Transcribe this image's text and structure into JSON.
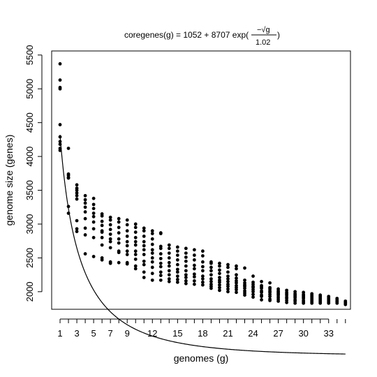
{
  "chart_data": {
    "type": "scatter",
    "title_parts": {
      "lhs": "coregenes(g) = 1052 + 8707 exp(",
      "numerator": "−√g",
      "denominator": "1.02",
      "close": ")"
    },
    "xlabel": "genomes (g)",
    "ylabel": "genome size (genes)",
    "xlim": [
      0.0,
      35.6
    ],
    "ylim": [
      1740,
      5560
    ],
    "x_ticks": [
      1,
      3,
      5,
      7,
      9,
      12,
      15,
      18,
      21,
      24,
      27,
      30,
      33
    ],
    "y_ticks": [
      2000,
      2500,
      3000,
      3500,
      4000,
      4500,
      5000,
      5500
    ],
    "fit": {
      "a": 1052,
      "b": 8707,
      "c": 1.02
    },
    "points_by_genomes": {
      "1": [
        5370,
        5130,
        5020,
        5000,
        4470,
        4290,
        4220,
        4180,
        4120,
        4090
      ],
      "2": [
        4120,
        3740,
        3720,
        3690,
        3680,
        3260,
        3160
      ],
      "3": [
        3580,
        3530,
        3500,
        3460,
        3420,
        3370,
        3050,
        2930,
        2890
      ],
      "4": [
        3420,
        3360,
        3310,
        3250,
        3180,
        3080,
        2940,
        2840,
        2560
      ],
      "5": [
        3380,
        3290,
        3230,
        3160,
        3110,
        3030,
        2930,
        2800,
        2520
      ],
      "6": [
        3150,
        3120,
        3040,
        2980,
        2900,
        2880,
        2800,
        2690,
        2500,
        2470
      ],
      "7": [
        3100,
        3060,
        2990,
        2920,
        2850,
        2780,
        2740,
        2650,
        2440,
        2420
      ],
      "8": [
        3080,
        3030,
        2950,
        2870,
        2780,
        2720,
        2600,
        2580,
        2430
      ],
      "9": [
        3060,
        2990,
        2900,
        2820,
        2740,
        2680,
        2600,
        2550,
        2430,
        2410
      ],
      "10": [
        3000,
        2950,
        2880,
        2800,
        2740,
        2690,
        2600,
        2550,
        2480,
        2380,
        2340
      ],
      "11": [
        2940,
        2900,
        2820,
        2740,
        2680,
        2620,
        2550,
        2450,
        2400,
        2290,
        2210
      ],
      "12": [
        2900,
        2860,
        2780,
        2700,
        2620,
        2570,
        2500,
        2440,
        2360,
        2270,
        2170
      ],
      "13": [
        2870,
        2860,
        2670,
        2640,
        2560,
        2490,
        2420,
        2370,
        2290,
        2240,
        2170
      ],
      "14": [
        2690,
        2640,
        2570,
        2500,
        2430,
        2380,
        2310,
        2250,
        2190,
        2150
      ],
      "15": [
        2660,
        2600,
        2540,
        2470,
        2400,
        2330,
        2290,
        2230,
        2180,
        2140
      ],
      "16": [
        2640,
        2570,
        2510,
        2450,
        2380,
        2310,
        2250,
        2210,
        2160,
        2120
      ],
      "17": [
        2620,
        2540,
        2470,
        2390,
        2340,
        2260,
        2220,
        2160,
        2110
      ],
      "18": [
        2600,
        2530,
        2440,
        2370,
        2310,
        2230,
        2190,
        2140,
        2100
      ],
      "19": [
        2440,
        2420,
        2360,
        2310,
        2250,
        2190,
        2150,
        2110,
        2080,
        2050
      ],
      "20": [
        2420,
        2380,
        2320,
        2270,
        2210,
        2170,
        2140,
        2100,
        2060,
        2020
      ],
      "21": [
        2400,
        2360,
        2290,
        2230,
        2190,
        2150,
        2110,
        2080,
        2040,
        2000
      ],
      "22": [
        2380,
        2340,
        2250,
        2200,
        2160,
        2130,
        2090,
        2060,
        2030,
        1990
      ],
      "23": [
        2350,
        2170,
        2130,
        2100,
        2080,
        2050,
        2010,
        1980,
        1950
      ],
      "24": [
        2230,
        2140,
        2110,
        2080,
        2060,
        2030,
        2000,
        1960,
        1920
      ],
      "25": [
        2150,
        2090,
        2070,
        2050,
        2010,
        1990,
        1950,
        1930,
        1880
      ],
      "26": [
        2130,
        2060,
        2040,
        2010,
        1990,
        1960,
        1930,
        1890,
        1870
      ],
      "27": [
        2040,
        2010,
        1990,
        1970,
        1950,
        1920,
        1890,
        1860
      ],
      "28": [
        2020,
        1990,
        1970,
        1950,
        1920,
        1900,
        1870,
        1840
      ],
      "29": [
        2000,
        1970,
        1950,
        1930,
        1910,
        1880,
        1860,
        1830
      ],
      "30": [
        1990,
        1960,
        1940,
        1920,
        1900,
        1870,
        1850,
        1830
      ],
      "31": [
        1970,
        1950,
        1930,
        1910,
        1890,
        1870,
        1850,
        1830
      ],
      "32": [
        1950,
        1930,
        1910,
        1890,
        1870,
        1850,
        1830
      ],
      "33": [
        1930,
        1910,
        1890,
        1870,
        1850,
        1830
      ],
      "34": [
        1900,
        1880,
        1860,
        1850,
        1830
      ],
      "35": [
        1860,
        1840,
        1830,
        1810
      ]
    }
  }
}
